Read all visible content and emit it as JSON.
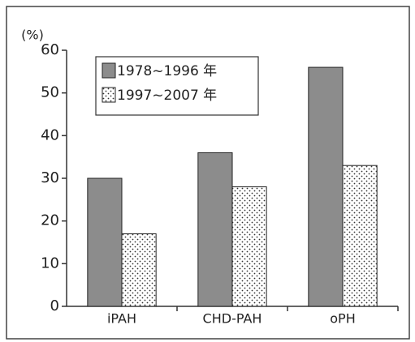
{
  "chart_data": {
    "type": "bar",
    "y_label": "(%)",
    "categories": [
      "iPAH",
      "CHD-PAH",
      "oPH"
    ],
    "series": [
      {
        "name": "1978~1996 年",
        "color": "#8c8c8c",
        "values": [
          30,
          36,
          56
        ]
      },
      {
        "name": "1997~2007 年",
        "color": "#ffffff",
        "pattern": "dots",
        "values": [
          17,
          28,
          33
        ]
      }
    ],
    "ylim": [
      0,
      60
    ],
    "yticks": [
      0,
      10,
      20,
      30,
      40,
      50,
      60
    ],
    "legend": "top-left"
  }
}
